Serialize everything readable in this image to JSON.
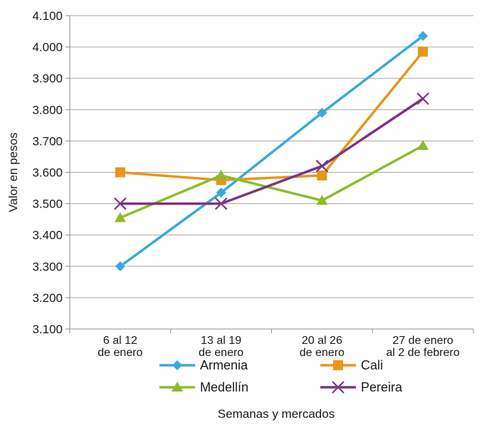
{
  "chart_data": {
    "type": "line",
    "title": "",
    "xlabel": "Semanas y mercados",
    "ylabel": "Valor en pesos",
    "ylim": [
      3100,
      4100
    ],
    "ytick_step": 100,
    "ytick_labels": [
      "3.100",
      "3.200",
      "3.300",
      "3.400",
      "3.500",
      "3.600",
      "3.700",
      "3.800",
      "3.900",
      "4.000",
      "4.100"
    ],
    "grid": true,
    "legend_position": "bottom",
    "categories": [
      [
        "6 al 12",
        "de enero"
      ],
      [
        "13 al 19",
        "de enero"
      ],
      [
        "20 al 26",
        "de enero"
      ],
      [
        "27 de enero",
        "al 2 de febrero"
      ]
    ],
    "series": [
      {
        "name": "Armenia",
        "color": "#3aa8dc",
        "marker": "diamond",
        "values": [
          3300,
          3535,
          3790,
          4035
        ]
      },
      {
        "name": "Cali",
        "color": "#e8951a",
        "marker": "square",
        "values": [
          3600,
          3575,
          3590,
          3985
        ]
      },
      {
        "name": "Medellín",
        "color": "#8dbb2b",
        "marker": "triangle",
        "values": [
          3455,
          3590,
          3510,
          3685
        ]
      },
      {
        "name": "Pereira",
        "color": "#7d3580",
        "marker": "x",
        "values": [
          3500,
          3500,
          3620,
          3835
        ]
      }
    ]
  }
}
